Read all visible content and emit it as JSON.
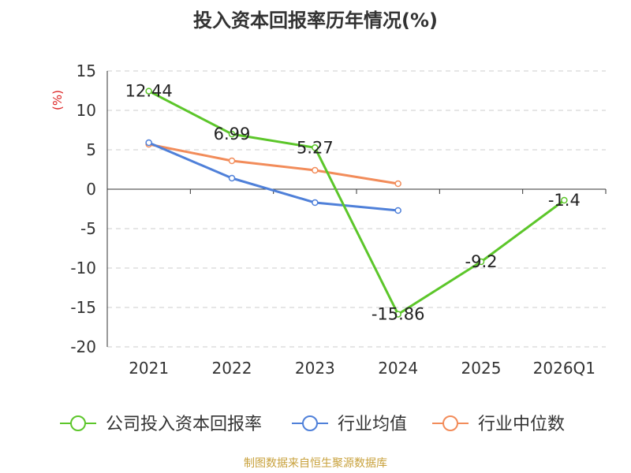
{
  "chart_data": {
    "type": "line",
    "title": "投入资本回报率历年情况(%)",
    "ylabel": "(%)",
    "xlabel": "",
    "categories": [
      "2021",
      "2022",
      "2023",
      "2024",
      "2025",
      "2026Q1"
    ],
    "yticks": [
      15,
      10,
      5,
      0,
      -5,
      -10,
      -15,
      -20
    ],
    "ylim": [
      -20,
      15
    ],
    "grid": true,
    "legend_position": "bottom",
    "series": [
      {
        "name": "公司投入资本回报率",
        "color": "#5cc62a",
        "values": [
          12.44,
          6.99,
          5.27,
          -15.86,
          -9.2,
          -1.4
        ],
        "labels": [
          "12.44",
          "6.99",
          "5.27",
          "-15.86",
          "-9.2",
          "-1.4"
        ]
      },
      {
        "name": "行业均值",
        "color": "#4f80d9",
        "values": [
          5.9,
          1.4,
          -1.7,
          -2.7,
          null,
          null
        ]
      },
      {
        "name": "行业中位数",
        "color": "#f28c5a",
        "values": [
          5.7,
          3.6,
          2.4,
          0.7,
          null,
          null
        ]
      }
    ]
  },
  "source": "制图数据来自恒生聚源数据库"
}
